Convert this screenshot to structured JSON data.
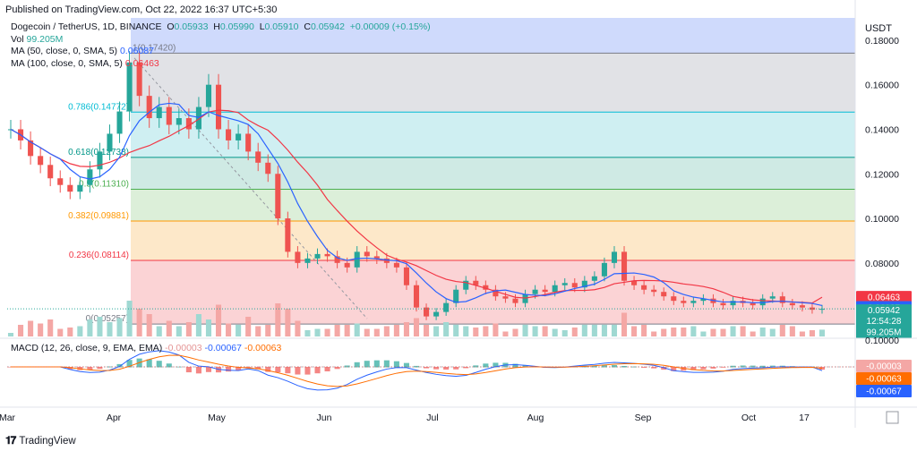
{
  "header": {
    "published": "Published on TradingView.com, Oct 22, 2022 16:37 UTC+5:30",
    "symbol": "Dogecoin / TetherUS, 1D, BINANCE",
    "ohlc": {
      "o_label": "O",
      "o": "0.05933",
      "h_label": "H",
      "h": "0.05990",
      "l_label": "L",
      "l": "0.05910",
      "c_label": "C",
      "c": "0.05942",
      "chg": "+0.00009 (+0.15%)"
    },
    "vol_label": "Vol",
    "vol": "99.205M",
    "ma50_label": "MA (50, close, 0, SMA, 5)",
    "ma50": "0.06087",
    "ma100_label": "MA (100, close, 0, SMA, 5)",
    "ma100": "0.06463"
  },
  "macd_legend": {
    "label": "MACD (12, 26, close, 9, EMA, EMA)",
    "hist": "-0.00003",
    "macd": "-0.00067",
    "signal": "-0.00063"
  },
  "axis": {
    "currency": "USDT",
    "price_ticks": [
      "0.18000",
      "0.16000",
      "0.14000",
      "0.12000",
      "0.10000",
      "0.08000"
    ],
    "macd_tick": "0.10000",
    "months": [
      "Mar",
      "Apr",
      "May",
      "Jun",
      "Jul",
      "Aug",
      "Sep",
      "Oct",
      "17"
    ]
  },
  "tags": {
    "ma100": "0.06463",
    "ma50": "0.06087",
    "price": "0.05942",
    "countdown": "12:54:28",
    "volume": "99.205M",
    "macd_hist": "-0.00003",
    "macd_signal": "-0.00063",
    "macd_line": "-0.00067"
  },
  "fib_levels": [
    {
      "label": "0.786(0.14772)",
      "value": 0.14772,
      "color": "#00bcd4"
    },
    {
      "label": "0.618(0.12738)",
      "value": 0.12738,
      "color": "#009688"
    },
    {
      "label": "0.5(0.11310)",
      "value": 0.1131,
      "color": "#4caf50"
    },
    {
      "label": "0.382(0.09881)",
      "value": 0.09881,
      "color": "#ff9800"
    },
    {
      "label": "0.236(0.08114)",
      "value": 0.08114,
      "color": "#f23645"
    },
    {
      "label": "0(0.05257)",
      "value": 0.05257,
      "color": "#787b86"
    }
  ],
  "fib_top": {
    "label": "1(0.17420)",
    "value": 0.1742
  },
  "colors": {
    "up": "#26a69a",
    "down": "#ef5350",
    "ma50": "#2962ff",
    "ma100": "#f23645",
    "macd": "#2962ff",
    "signal": "#ff6d00"
  },
  "chart_data": {
    "type": "candlestick",
    "title": "Dogecoin / TetherUS, 1D, BINANCE",
    "ylabel": "USDT",
    "ylim": [
      0.047,
      0.19
    ],
    "x_months": [
      "Mar",
      "Apr",
      "May",
      "Jun",
      "Jul",
      "Aug",
      "Sep",
      "Oct",
      "17"
    ],
    "close_series_approx": [
      0.14,
      0.135,
      0.128,
      0.124,
      0.118,
      0.115,
      0.112,
      0.115,
      0.122,
      0.13,
      0.138,
      0.148,
      0.17,
      0.155,
      0.145,
      0.15,
      0.142,
      0.145,
      0.14,
      0.15,
      0.16,
      0.14,
      0.135,
      0.138,
      0.13,
      0.125,
      0.12,
      0.1,
      0.085,
      0.08,
      0.082,
      0.084,
      0.083,
      0.08,
      0.078,
      0.085,
      0.083,
      0.082,
      0.08,
      0.078,
      0.07,
      0.06,
      0.056,
      0.058,
      0.062,
      0.068,
      0.072,
      0.07,
      0.068,
      0.065,
      0.064,
      0.062,
      0.066,
      0.068,
      0.067,
      0.07,
      0.071,
      0.069,
      0.072,
      0.074,
      0.08,
      0.085,
      0.072,
      0.07,
      0.068,
      0.067,
      0.065,
      0.063,
      0.062,
      0.063,
      0.064,
      0.062,
      0.061,
      0.063,
      0.062,
      0.061,
      0.064,
      0.065,
      0.062,
      0.061,
      0.06,
      0.059,
      0.0594
    ],
    "ma50_last": 0.06087,
    "ma100_last": 0.06463,
    "last_close": 0.05942,
    "volume_last": "99.205M",
    "macd": {
      "macd": -0.00067,
      "signal": -0.00063,
      "hist": -3e-05
    }
  }
}
